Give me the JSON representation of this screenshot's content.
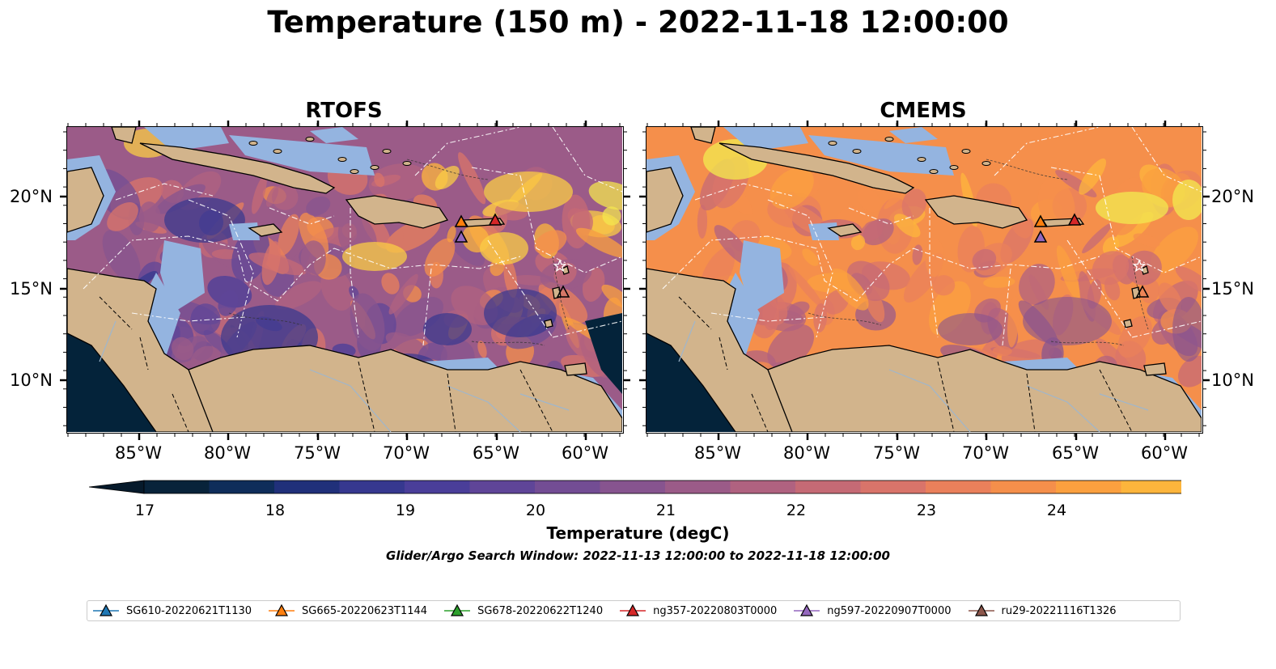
{
  "title": "Temperature (150 m) - 2022-11-18 12:00:00",
  "panels": [
    {
      "title": "RTOFS"
    },
    {
      "title": "CMEMS"
    }
  ],
  "x_ticks": [
    "85°W",
    "80°W",
    "75°W",
    "70°W",
    "65°W",
    "60°W"
  ],
  "y_ticks": [
    "20°N",
    "15°N",
    "10°N"
  ],
  "colorbar": {
    "label": "Temperature (degC)",
    "ticks": [
      "17",
      "18",
      "19",
      "20",
      "21",
      "22",
      "23",
      "24"
    ],
    "colors": [
      "#08233a",
      "#0f2d5a",
      "#20307a",
      "#36388f",
      "#4a3e99",
      "#5f4598",
      "#734d94",
      "#87548f",
      "#9b5b88",
      "#b06280",
      "#c56a75",
      "#d9746a",
      "#ea805b",
      "#f58f4b",
      "#fba03f",
      "#fdb53c",
      "#f9cc45",
      "#f3e54f"
    ],
    "under_color": "#061a2b",
    "over_color": "#f1fa56"
  },
  "search_window": "Glider/Argo Search Window: 2022-11-13 12:00:00 to 2022-11-18 12:00:00",
  "legend": [
    {
      "label": "SG610-20220621T1130",
      "color": "#1f77b4"
    },
    {
      "label": "SG665-20220623T1144",
      "color": "#ff7f0e"
    },
    {
      "label": "SG678-20220622T1240",
      "color": "#2ca02c"
    },
    {
      "label": "ng357-20220803T0000",
      "color": "#d62728"
    },
    {
      "label": "ng597-20220907T0000",
      "color": "#9467bd"
    },
    {
      "label": "ru29-20221116T1326",
      "color": "#8c564b"
    }
  ],
  "map_colors": {
    "land": "#d2b48c",
    "shelf": "#94b4e0",
    "deep_left": "#04233a"
  }
}
